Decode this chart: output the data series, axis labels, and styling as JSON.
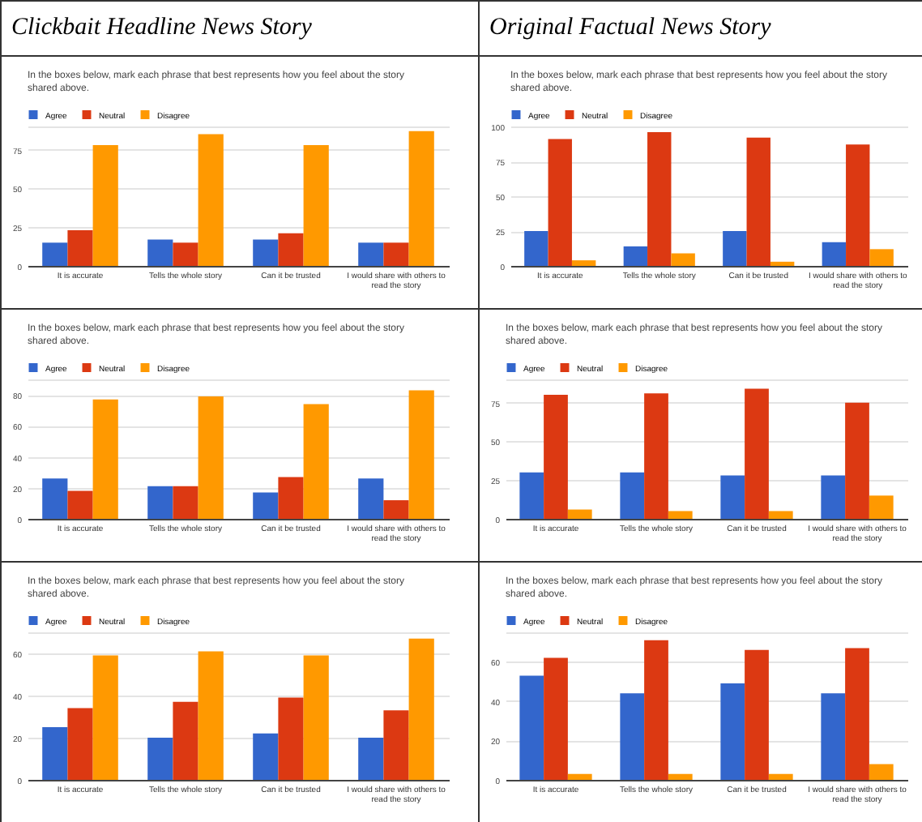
{
  "chart_data": [
    {
      "type": "bar",
      "title": "Clickbait Headline News Story",
      "subtitle": "In the boxes below, mark each phrase that best represents how you feel about the story shared above.",
      "categories": [
        "It is accurate",
        "Tells the whole story",
        "Can it be trusted",
        "I would share with others to read the story"
      ],
      "legend": "top left",
      "grid": "y",
      "ylim": [
        0,
        90
      ],
      "yticks": [
        0,
        25,
        50,
        75,
        {
          "value": 90,
          "label": null
        }
      ],
      "series": [
        {
          "name": "Agree",
          "color": "#3366cc",
          "values": [
            15,
            17,
            17,
            15
          ]
        },
        {
          "name": "Neutral",
          "color": "#dc3912",
          "values": [
            23,
            15,
            21,
            15
          ]
        },
        {
          "name": "Disagree",
          "color": "#ff9900",
          "values": [
            78,
            85,
            78,
            87
          ]
        }
      ]
    },
    {
      "type": "bar",
      "title": "Original Factual News Story",
      "subtitle": "In the boxes below, mark each phrase that best represents how you feel about the story shared above.",
      "categories": [
        "It is accurate",
        "Tells the whole story",
        "Can it be trusted",
        "I would share with others to read the story"
      ],
      "legend": "top left",
      "grid": "y",
      "ylim": [
        0,
        100
      ],
      "yticks": [
        0,
        25,
        50,
        75,
        100
      ],
      "series": [
        {
          "name": "Agree",
          "color": "#3366cc",
          "values": [
            25,
            14,
            25,
            17
          ]
        },
        {
          "name": "Neutral",
          "color": "#dc3912",
          "values": [
            91,
            96,
            92,
            87
          ]
        },
        {
          "name": "Disagree",
          "color": "#ff9900",
          "values": [
            4,
            9,
            3,
            12
          ]
        }
      ]
    },
    {
      "type": "bar",
      "subtitle": "In the boxes below, mark each phrase that best represents how you feel about the story shared above.",
      "categories": [
        "It is accurate",
        "Tells the whole story",
        "Can it be trusted",
        "I would share with others to read the story"
      ],
      "legend": "top left",
      "grid": "y",
      "ylim": [
        0,
        90
      ],
      "yticks": [
        0,
        20,
        40,
        60,
        80,
        {
          "value": 90,
          "label": null
        }
      ],
      "series": [
        {
          "name": "Agree",
          "color": "#3366cc",
          "values": [
            26,
            21,
            17,
            26
          ]
        },
        {
          "name": "Neutral",
          "color": "#dc3912",
          "values": [
            18,
            21,
            27,
            12
          ]
        },
        {
          "name": "Disagree",
          "color": "#ff9900",
          "values": [
            77,
            79,
            74,
            83
          ]
        }
      ]
    },
    {
      "type": "bar",
      "subtitle": "In the boxes below, mark each phrase that best represents how you feel about the story shared above.",
      "categories": [
        "It is accurate",
        "Tells the whole story",
        "Can it be trusted",
        "I would share with others to read the story"
      ],
      "legend": "top left",
      "grid": "y",
      "ylim": [
        0,
        90
      ],
      "yticks": [
        0,
        25,
        50,
        75,
        {
          "value": 90,
          "label": null
        }
      ],
      "series": [
        {
          "name": "Agree",
          "color": "#3366cc",
          "values": [
            30,
            30,
            28,
            28
          ]
        },
        {
          "name": "Neutral",
          "color": "#dc3912",
          "values": [
            80,
            81,
            84,
            75
          ]
        },
        {
          "name": "Disagree",
          "color": "#ff9900",
          "values": [
            6,
            5,
            5,
            15
          ]
        }
      ]
    },
    {
      "type": "bar",
      "subtitle": "In the boxes below, mark each phrase that best represents how you feel about the story shared above.",
      "categories": [
        "It is accurate",
        "Tells the whole story",
        "Can it be trusted",
        "I would share with others to read the story"
      ],
      "legend": "top left",
      "grid": "y",
      "ylim": [
        0,
        70
      ],
      "yticks": [
        0,
        20,
        40,
        60,
        {
          "value": 70,
          "label": null
        }
      ],
      "series": [
        {
          "name": "Agree",
          "color": "#3366cc",
          "values": [
            25,
            20,
            22,
            20
          ]
        },
        {
          "name": "Neutral",
          "color": "#dc3912",
          "values": [
            34,
            37,
            39,
            33
          ]
        },
        {
          "name": "Disagree",
          "color": "#ff9900",
          "values": [
            59,
            61,
            59,
            67
          ]
        }
      ]
    },
    {
      "type": "bar",
      "subtitle": "In the boxes below, mark each phrase that best represents how you feel about the story shared above.",
      "categories": [
        "It is accurate",
        "Tells the whole story",
        "Can it be trusted",
        "I would share with others to read the story"
      ],
      "legend": "top left",
      "grid": "y",
      "ylim": [
        0,
        75
      ],
      "yticks": [
        0,
        20,
        40,
        60,
        {
          "value": 75,
          "label": null
        }
      ],
      "series": [
        {
          "name": "Agree",
          "color": "#3366cc",
          "values": [
            53,
            44,
            49,
            44
          ]
        },
        {
          "name": "Neutral",
          "color": "#dc3912",
          "values": [
            62,
            71,
            66,
            67
          ]
        },
        {
          "name": "Disagree",
          "color": "#ff9900",
          "values": [
            3,
            3,
            3,
            8
          ]
        }
      ]
    }
  ]
}
